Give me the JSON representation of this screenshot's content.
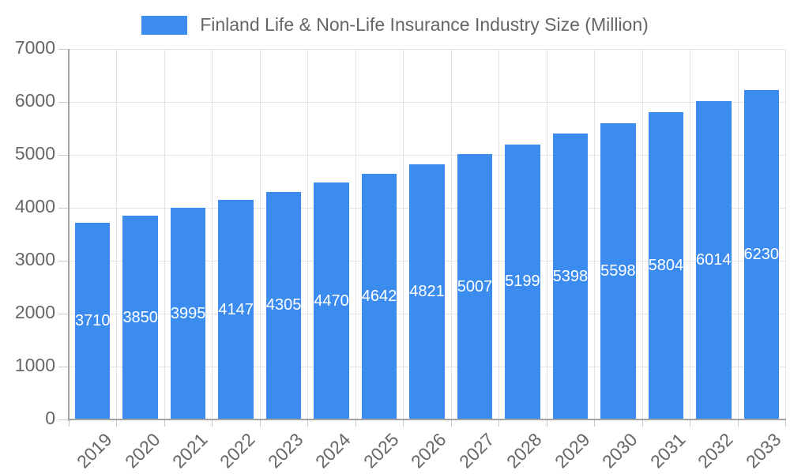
{
  "legend": {
    "label": "Finland Life & Non-Life Insurance Industry Size (Million)"
  },
  "colors": {
    "bar": "#3c8cf0",
    "axis_text": "#666666",
    "bar_label_text": "#ffffff",
    "gridline": "#e3e3e3",
    "tick": "#c9c9c9",
    "axis_line": "#a3a3a3",
    "background": "#ffffff"
  },
  "chart_data": {
    "type": "bar",
    "title": "Finland Life & Non-Life Insurance Industry Size (Million)",
    "categories": [
      "2019",
      "2020",
      "2021",
      "2022",
      "2023",
      "2024",
      "2025",
      "2026",
      "2027",
      "2028",
      "2029",
      "2030",
      "2031",
      "2032",
      "2033"
    ],
    "values": [
      3710.3,
      3850.2,
      3995.6,
      4147.3,
      4305.2,
      4470.3,
      4642,
      4821,
      5007.5,
      5199.7,
      5398,
      5598.5,
      5804.4,
      6014.2,
      6230.2
    ],
    "bar_value_labels": [
      "3710.3",
      "3850.2",
      "3995.6",
      "4147.3",
      "4305.2",
      "4470.3",
      "4642",
      "4821",
      "5007.5",
      "5199.7",
      "5398",
      "5598.5",
      "5804.4",
      "6014.2",
      "6230.2"
    ],
    "xlabel": "",
    "ylabel": "",
    "ylim": [
      0,
      7000
    ],
    "yticks": [
      0,
      1000,
      2000,
      3000,
      4000,
      5000,
      6000,
      7000
    ],
    "grid": true,
    "legend_position": "top",
    "value_labels": "centered-in-bar-white"
  }
}
